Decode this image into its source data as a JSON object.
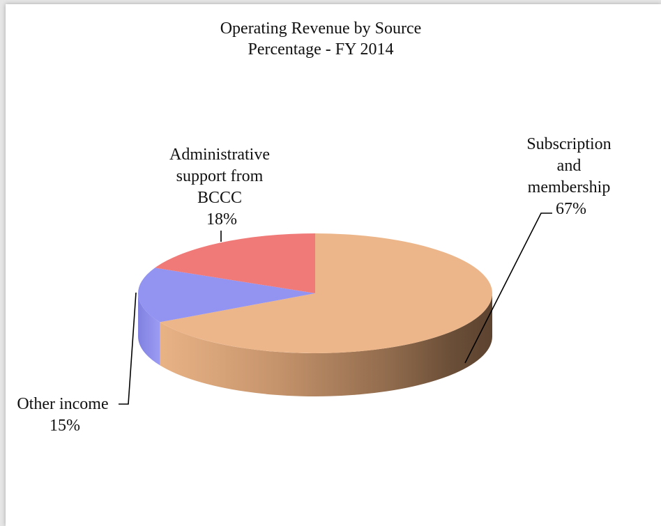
{
  "chart_data": {
    "type": "pie",
    "title": "Operating Revenue by Source",
    "subtitle": "Percentage - FY 2014",
    "slices": [
      {
        "label": "Subscription and membership",
        "value": 67,
        "value_label": "67%",
        "color": "#edb68a"
      },
      {
        "label": "Other income",
        "value": 15,
        "value_label": "15%",
        "color": "#9393f2"
      },
      {
        "label": "Administrative support from BCCC",
        "value": 18,
        "value_label": "18%",
        "color": "#f07a78"
      }
    ],
    "style": "3d",
    "legend": "none"
  }
}
